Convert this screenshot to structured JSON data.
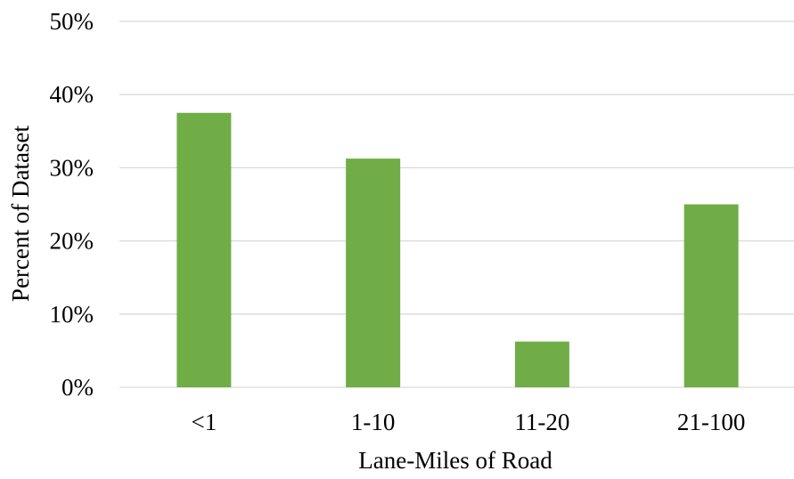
{
  "chart_data": {
    "type": "bar",
    "title": "",
    "xlabel": "Lane-Miles of Road",
    "ylabel": "Percent of Dataset",
    "categories": [
      "<1",
      "1-10",
      "11-20",
      "21-100"
    ],
    "values": [
      37.5,
      31.25,
      6.25,
      25
    ],
    "ylim": [
      0,
      50
    ],
    "yticks": [
      0,
      10,
      20,
      30,
      40,
      50
    ],
    "ytick_labels": [
      "0%",
      "10%",
      "20%",
      "30%",
      "40%",
      "50%"
    ],
    "grid": "horizontal",
    "legend": "none",
    "colors": {
      "bar": "#70AD47",
      "grid": "#D9D9D9"
    }
  }
}
